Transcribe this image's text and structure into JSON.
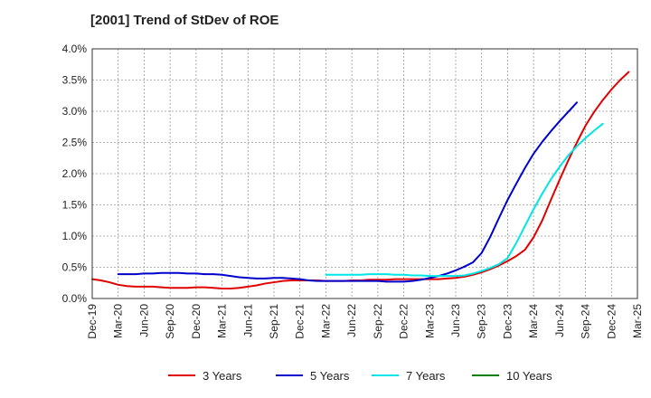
{
  "chart_data": {
    "type": "line",
    "title": "[2001]  Trend of StDev of ROE",
    "ylim": [
      0,
      4.0
    ],
    "y_ticks": [
      "4.0%",
      "3.5%",
      "3.0%",
      "2.5%",
      "2.0%",
      "1.5%",
      "1.0%",
      "0.5%",
      "0.0%"
    ],
    "y_tick_values": [
      4.0,
      3.5,
      3.0,
      2.5,
      2.0,
      1.5,
      1.0,
      0.5,
      0.0
    ],
    "x_ticks": [
      "Dec-19",
      "Mar-20",
      "Jun-20",
      "Sep-20",
      "Dec-20",
      "Mar-21",
      "Jun-21",
      "Sep-21",
      "Dec-21",
      "Mar-22",
      "Jun-22",
      "Sep-22",
      "Dec-22",
      "Mar-23",
      "Jun-23",
      "Sep-23",
      "Dec-23",
      "Mar-24",
      "Jun-24",
      "Sep-24",
      "Dec-24",
      "Mar-25"
    ],
    "grid": true,
    "legend_position": "bottom",
    "series": [
      {
        "name": "3 Years",
        "color": "#e00000",
        "start_index": 0,
        "values": [
          0.31,
          0.29,
          0.26,
          0.22,
          0.2,
          0.19,
          0.19,
          0.19,
          0.18,
          0.17,
          0.17,
          0.17,
          0.18,
          0.18,
          0.17,
          0.16,
          0.16,
          0.17,
          0.19,
          0.21,
          0.24,
          0.26,
          0.28,
          0.29,
          0.29,
          0.29,
          0.29,
          0.28,
          0.28,
          0.28,
          0.29,
          0.29,
          0.3,
          0.3,
          0.3,
          0.31,
          0.31,
          0.31,
          0.31,
          0.31,
          0.31,
          0.32,
          0.33,
          0.35,
          0.38,
          0.42,
          0.47,
          0.53,
          0.6,
          0.68,
          0.78,
          0.98,
          1.25,
          1.58,
          1.9,
          2.21,
          2.5,
          2.77,
          2.99,
          3.18,
          3.35,
          3.5,
          3.63
        ]
      },
      {
        "name": "5 Years",
        "color": "#0000cc",
        "start_index": 3,
        "values": [
          0.39,
          0.39,
          0.39,
          0.4,
          0.4,
          0.41,
          0.41,
          0.41,
          0.4,
          0.4,
          0.39,
          0.39,
          0.38,
          0.36,
          0.34,
          0.33,
          0.32,
          0.32,
          0.33,
          0.33,
          0.32,
          0.31,
          0.29,
          0.28,
          0.28,
          0.28,
          0.28,
          0.28,
          0.28,
          0.28,
          0.28,
          0.27,
          0.27,
          0.27,
          0.28,
          0.3,
          0.33,
          0.36,
          0.4,
          0.45,
          0.51,
          0.58,
          0.73,
          0.99,
          1.29,
          1.58,
          1.84,
          2.09,
          2.32,
          2.51,
          2.68,
          2.84,
          2.99,
          3.14
        ]
      },
      {
        "name": "7 Years",
        "color": "#00e5e5",
        "start_index": 27,
        "values": [
          0.38,
          0.38,
          0.38,
          0.38,
          0.38,
          0.39,
          0.39,
          0.39,
          0.38,
          0.38,
          0.37,
          0.37,
          0.36,
          0.36,
          0.36,
          0.36,
          0.37,
          0.4,
          0.44,
          0.49,
          0.55,
          0.65,
          0.89,
          1.16,
          1.43,
          1.68,
          1.91,
          2.11,
          2.29,
          2.44,
          2.57,
          2.69,
          2.8
        ]
      },
      {
        "name": "10 Years",
        "color": "#008000",
        "start_index": 0,
        "values": []
      }
    ]
  }
}
